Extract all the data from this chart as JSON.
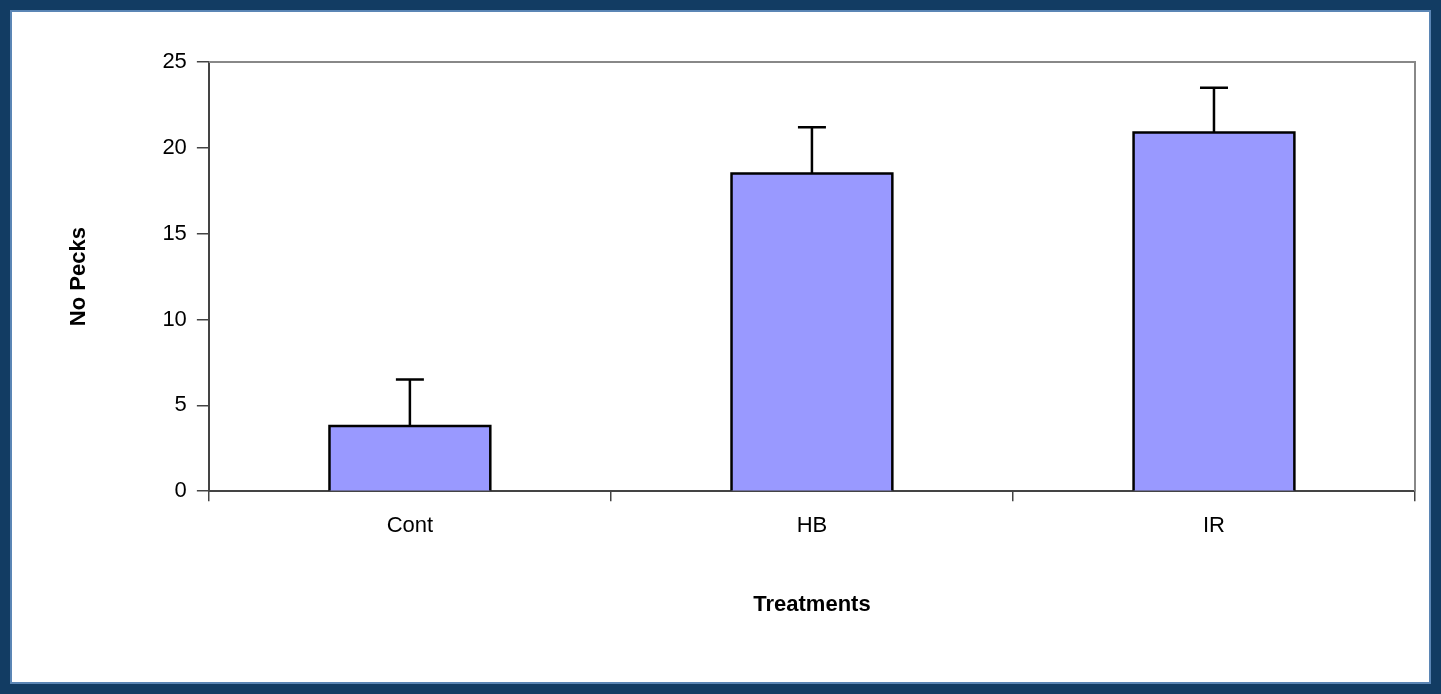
{
  "chart_data": {
    "type": "bar",
    "xlabel": "Treatments",
    "ylabel": "No Pecks",
    "categories": [
      "Cont",
      "HB",
      "IR"
    ],
    "values": [
      3.8,
      18.5,
      20.9
    ],
    "errors": [
      [
        3.8,
        6.5
      ],
      [
        18.5,
        21.2
      ],
      [
        20.9,
        23.5
      ]
    ],
    "color": "#9999ff",
    "ylim": [
      0,
      25
    ],
    "yticks": [
      0,
      5,
      10,
      15,
      20,
      25
    ],
    "grid": false
  }
}
